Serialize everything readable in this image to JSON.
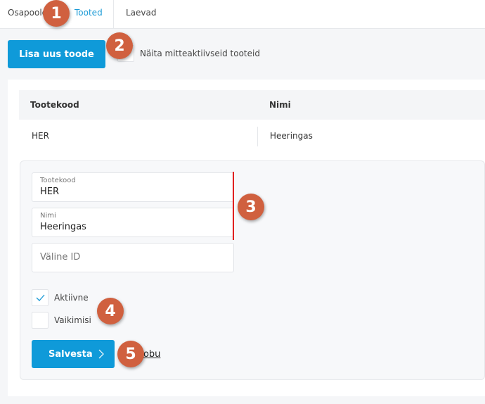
{
  "tabs": [
    {
      "label": "Osapooled"
    },
    {
      "label": "Tooted",
      "active": true
    },
    {
      "label": "Laevad"
    }
  ],
  "toolbar": {
    "add_button": "Lisa uus toode",
    "show_inactive_label": "Näita mitteaktiivseid tooteid",
    "show_inactive_checked": false
  },
  "table": {
    "columns": [
      "Tootekood",
      "Nimi"
    ],
    "rows": [
      {
        "code": "HER",
        "name": "Heeringas"
      }
    ]
  },
  "form": {
    "code": {
      "label": "Tootekood",
      "value": "HER"
    },
    "name": {
      "label": "Nimi",
      "value": "Heeringas"
    },
    "external_id": {
      "placeholder": "Väline ID",
      "value": ""
    },
    "active": {
      "label": "Aktiivne",
      "checked": true
    },
    "default": {
      "label": "Vaikimisi",
      "checked": false
    },
    "save_button": "Salvesta",
    "cancel_link": "Loobu"
  },
  "annotations": [
    "1",
    "2",
    "3",
    "4",
    "5"
  ],
  "colors": {
    "accent": "#0f9ad9",
    "badge": "#d0603f",
    "highlight_bar": "#e02020"
  }
}
